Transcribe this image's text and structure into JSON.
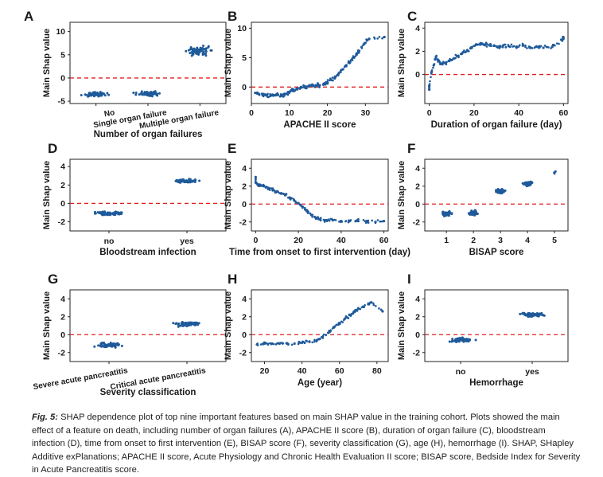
{
  "y_label": "Main Shap value",
  "figure": {
    "caption_label": "Fig. 5:",
    "caption_text": "SHAP dependence plot of top nine important features based on main SHAP value in the training cohort. Plots showed the main effect of a feature on death, including number of organ failures (A), APACHE II score (B), duration of organ failure (C), bloodstream infection (D), time from onset to first intervention (E), BISAP score (F), severity classification (G), age (H), hemorrhage (I). SHAP, SHapley Additive exPlanations; APACHE II score, Acute Physiology and Chronic Health Evaluation II score; BISAP score, Bedside Index for Severity in Acute Pancreatitis score."
  },
  "colors": {
    "points": "#1f5a9a",
    "zero_line": "#e02020",
    "axis": "#222222"
  },
  "chart_data": [
    {
      "panel": "A",
      "type": "scatter",
      "xlabel": "Number of organ failures",
      "ylabel": "Main Shap value",
      "categorical": true,
      "categories": [
        "No",
        "Single organ failure",
        "Multiple organ failure"
      ],
      "ylim": [
        -5.5,
        12
      ],
      "yticks": [
        -5,
        0,
        5,
        10
      ],
      "cluster_means": [
        -3.5,
        -3.4,
        5.9
      ]
    },
    {
      "panel": "B",
      "type": "scatter",
      "xlabel": "APACHE II score",
      "ylabel": "Main Shap value",
      "xlim": [
        0,
        36
      ],
      "xticks": [
        0,
        10,
        20,
        30
      ],
      "ylim": [
        -2.8,
        11
      ],
      "yticks": [
        0,
        5,
        10
      ],
      "points": [
        [
          1,
          -1.0
        ],
        [
          2,
          -1.2
        ],
        [
          3,
          -1.3
        ],
        [
          4,
          -1.4
        ],
        [
          5,
          -1.5
        ],
        [
          6,
          -1.4
        ],
        [
          7,
          -1.3
        ],
        [
          8,
          -1.4
        ],
        [
          9,
          -1.2
        ],
        [
          10,
          -0.8
        ],
        [
          11,
          -0.5
        ],
        [
          12,
          -0.3
        ],
        [
          13,
          -0.1
        ],
        [
          14,
          0.0
        ],
        [
          15,
          0.1
        ],
        [
          16,
          0.2
        ],
        [
          17,
          0.3
        ],
        [
          18,
          0.3
        ],
        [
          19,
          0.5
        ],
        [
          20,
          0.8
        ],
        [
          21,
          1.2
        ],
        [
          22,
          1.6
        ],
        [
          23,
          2.3
        ],
        [
          24,
          3.0
        ],
        [
          25,
          3.7
        ],
        [
          26,
          4.3
        ],
        [
          27,
          5.0
        ],
        [
          28,
          5.8
        ],
        [
          29,
          6.8
        ],
        [
          30,
          7.5
        ],
        [
          31,
          8.2
        ],
        [
          35,
          8.5
        ]
      ]
    },
    {
      "panel": "C",
      "type": "scatter",
      "xlabel": "Duration of organ failure (day)",
      "ylabel": "Main Shap value",
      "xlim": [
        -2,
        62
      ],
      "xticks": [
        0,
        20,
        40,
        60
      ],
      "ylim": [
        -2.5,
        4.5
      ],
      "yticks": [
        0,
        2,
        4
      ],
      "points": [
        [
          0,
          -1.3
        ],
        [
          0,
          -1.0
        ],
        [
          1,
          0.2
        ],
        [
          2,
          0.8
        ],
        [
          3,
          1.5
        ],
        [
          4,
          1.2
        ],
        [
          5,
          0.9
        ],
        [
          7,
          1.0
        ],
        [
          9,
          1.2
        ],
        [
          11,
          1.4
        ],
        [
          13,
          1.6
        ],
        [
          15,
          1.9
        ],
        [
          17,
          2.1
        ],
        [
          19,
          2.3
        ],
        [
          21,
          2.6
        ],
        [
          23,
          2.7
        ],
        [
          25,
          2.6
        ],
        [
          27,
          2.5
        ],
        [
          29,
          2.5
        ],
        [
          31,
          2.4
        ],
        [
          33,
          2.5
        ],
        [
          36,
          2.4
        ],
        [
          39,
          2.4
        ],
        [
          42,
          2.5
        ],
        [
          45,
          2.3
        ],
        [
          48,
          2.4
        ],
        [
          51,
          2.3
        ],
        [
          55,
          2.4
        ],
        [
          59,
          3.0
        ],
        [
          60,
          3.1
        ]
      ]
    },
    {
      "panel": "D",
      "type": "scatter",
      "xlabel": "Bloodstream infection",
      "ylabel": "Main Shap value",
      "categorical": true,
      "categories": [
        "no",
        "yes"
      ],
      "ylim": [
        -3,
        4.8
      ],
      "yticks": [
        -2,
        0,
        2,
        4
      ],
      "cluster_means": [
        -1.1,
        2.45
      ]
    },
    {
      "panel": "E",
      "type": "scatter",
      "xlabel": "Time from onset to first intervention (day)",
      "ylabel": "Main Shap value",
      "xlim": [
        -2,
        62
      ],
      "xticks": [
        0,
        20,
        40,
        60
      ],
      "ylim": [
        -3,
        5
      ],
      "yticks": [
        -2,
        0,
        2,
        4
      ],
      "points": [
        [
          0,
          3.0
        ],
        [
          0,
          2.4
        ],
        [
          1,
          2.2
        ],
        [
          2,
          2.1
        ],
        [
          4,
          2.0
        ],
        [
          6,
          1.8
        ],
        [
          8,
          1.6
        ],
        [
          10,
          1.4
        ],
        [
          12,
          1.2
        ],
        [
          14,
          1.0
        ],
        [
          16,
          0.7
        ],
        [
          18,
          0.4
        ],
        [
          20,
          0.1
        ],
        [
          22,
          -0.3
        ],
        [
          24,
          -0.8
        ],
        [
          26,
          -1.2
        ],
        [
          28,
          -1.5
        ],
        [
          30,
          -1.7
        ],
        [
          33,
          -1.8
        ],
        [
          36,
          -1.8
        ],
        [
          40,
          -1.9
        ],
        [
          44,
          -1.9
        ],
        [
          48,
          -1.9
        ],
        [
          52,
          -1.9
        ],
        [
          56,
          -2.0
        ],
        [
          60,
          -1.9
        ]
      ]
    },
    {
      "panel": "F",
      "type": "scatter",
      "xlabel": "BISAP score",
      "ylabel": "Main Shap value",
      "categorical": false,
      "xlim": [
        0.2,
        5.5
      ],
      "xticks": [
        1,
        2,
        3,
        4,
        5
      ],
      "ylim": [
        -3,
        5
      ],
      "yticks": [
        -2,
        0,
        2,
        4
      ],
      "cluster_means": [
        [
          1,
          -1.1
        ],
        [
          2,
          -1.0
        ],
        [
          3,
          1.4
        ],
        [
          4,
          2.3
        ],
        [
          5,
          3.6
        ]
      ]
    },
    {
      "panel": "G",
      "type": "scatter",
      "xlabel": "Severity classification",
      "ylabel": "Main Shap value",
      "categorical": true,
      "categories": [
        "Severe acute pancreatitis",
        "Critical acute pancreatitis"
      ],
      "ylim": [
        -3,
        5
      ],
      "yticks": [
        -2,
        0,
        2,
        4
      ],
      "cluster_means": [
        -1.15,
        1.15
      ]
    },
    {
      "panel": "H",
      "type": "scatter",
      "xlabel": "Age (year)",
      "ylabel": "Main Shap value",
      "xlim": [
        13,
        86
      ],
      "xticks": [
        20,
        40,
        60,
        80
      ],
      "ylim": [
        -3,
        5
      ],
      "yticks": [
        -2,
        0,
        2,
        4
      ],
      "points": [
        [
          16,
          -1.1
        ],
        [
          20,
          -1.0
        ],
        [
          24,
          -1.0
        ],
        [
          28,
          -1.0
        ],
        [
          32,
          -1.0
        ],
        [
          36,
          -1.0
        ],
        [
          40,
          -0.9
        ],
        [
          44,
          -0.8
        ],
        [
          48,
          -0.6
        ],
        [
          51,
          -0.3
        ],
        [
          54,
          0.2
        ],
        [
          57,
          0.8
        ],
        [
          60,
          1.3
        ],
        [
          63,
          1.8
        ],
        [
          66,
          2.2
        ],
        [
          68,
          2.6
        ],
        [
          70,
          2.9
        ],
        [
          73,
          3.1
        ],
        [
          77,
          3.6
        ],
        [
          83,
          2.6
        ]
      ]
    },
    {
      "panel": "I",
      "type": "scatter",
      "xlabel": "Hemorrhage",
      "ylabel": "Main Shap value",
      "categorical": true,
      "categories": [
        "no",
        "yes"
      ],
      "ylim": [
        -3,
        5
      ],
      "yticks": [
        -2,
        0,
        2,
        4
      ],
      "cluster_means": [
        -0.6,
        2.2
      ]
    }
  ]
}
